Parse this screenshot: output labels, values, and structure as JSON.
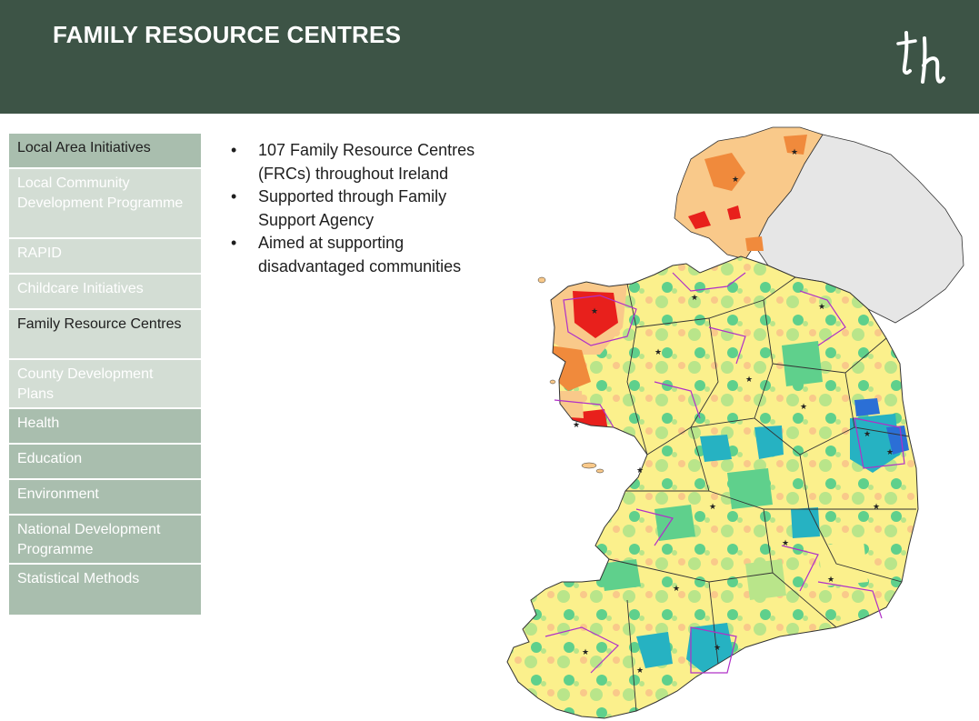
{
  "header": {
    "title": "FAMILY RESOURCE CENTRES",
    "logo_alt": "th",
    "background": "#3d5446"
  },
  "sidebar": {
    "items": [
      {
        "label": "Local Area Initiatives",
        "style": "current-section"
      },
      {
        "label": "Local Community Development Programme",
        "style": "subitem"
      },
      {
        "label": "RAPID",
        "style": "subitem"
      },
      {
        "label": "Childcare Initiatives",
        "style": "subitem"
      },
      {
        "label": "Family Resource Centres",
        "style": "current-page"
      },
      {
        "label": "County Development Plans",
        "style": "subitem"
      },
      {
        "label": "Health",
        "style": "section"
      },
      {
        "label": "Education",
        "style": "section"
      },
      {
        "label": "Environment",
        "style": "section"
      },
      {
        "label": "National Development Programme",
        "style": "section"
      },
      {
        "label": "Statistical Methods",
        "style": "section"
      }
    ]
  },
  "bullets": [
    "107 Family Resource Centres (FRCs) throughout Ireland",
    "Supported through Family Support Agency",
    "Aimed at supporting disadvantaged communities"
  ],
  "map": {
    "subject": "Ireland deprivation map with Family Resource Centre locations",
    "colors": {
      "most_disadvantaged": "#e8201c",
      "very_disadvantaged": "#f08a3c",
      "disadvantaged": "#f9c98a",
      "below_average": "#fbf08c",
      "above_average": "#b9e58a",
      "affluent": "#5fd08c",
      "very_affluent": "#26b2c2",
      "most_affluent": "#2b6fd6",
      "northern_ireland": "#e6e6e6",
      "boundary_purple": "#b030c8",
      "county_boundary": "#333333"
    }
  }
}
